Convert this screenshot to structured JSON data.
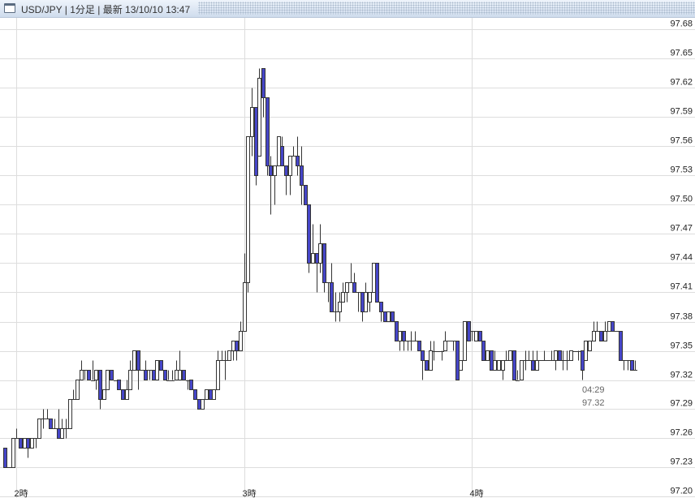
{
  "window": {
    "title": "USD/JPY | 1分足 | 最新 13/10/10 13:47",
    "icon": "window-icon"
  },
  "colors": {
    "up_fill": "#ffffff",
    "down_fill": "#4646c8",
    "candle_stroke": "#333333",
    "grid": "#dddddd"
  },
  "chart_data": {
    "type": "candlestick",
    "title": "",
    "interval": "1分足",
    "ylim": [
      97.2,
      97.68
    ],
    "yticks": [
      "97.68",
      "97.65",
      "97.62",
      "97.59",
      "97.56",
      "97.53",
      "97.50",
      "97.47",
      "97.44",
      "97.41",
      "97.38",
      "97.35",
      "97.32",
      "97.29",
      "97.26",
      "97.23",
      "97.20"
    ],
    "xticks": [
      {
        "label": "2時",
        "time": "02:00"
      },
      {
        "label": "3時",
        "time": "03:00"
      },
      {
        "label": "4時",
        "time": "04:00"
      }
    ],
    "grid": true,
    "axis_position": "right",
    "tooltip": {
      "time": "04:29",
      "price": "97.32"
    },
    "candle_fields": [
      "time",
      "open",
      "high",
      "low",
      "close"
    ],
    "candles": [
      [
        "01:57",
        97.25,
        97.25,
        97.23,
        97.23
      ],
      [
        "01:58",
        97.23,
        97.23,
        97.23,
        97.23
      ],
      [
        "01:59",
        97.23,
        97.26,
        97.23,
        97.26
      ],
      [
        "02:00",
        97.26,
        97.27,
        97.26,
        97.26
      ],
      [
        "02:01",
        97.26,
        97.26,
        97.25,
        97.25
      ],
      [
        "02:02",
        97.25,
        97.26,
        97.25,
        97.26
      ],
      [
        "02:03",
        97.26,
        97.26,
        97.24,
        97.25
      ],
      [
        "02:04",
        97.25,
        97.26,
        97.25,
        97.26
      ],
      [
        "02:05",
        97.26,
        97.26,
        97.25,
        97.26
      ],
      [
        "02:06",
        97.26,
        97.28,
        97.26,
        97.28
      ],
      [
        "02:07",
        97.28,
        97.29,
        97.27,
        97.28
      ],
      [
        "02:08",
        97.28,
        97.29,
        97.28,
        97.28
      ],
      [
        "02:09",
        97.28,
        97.28,
        97.27,
        97.27
      ],
      [
        "02:10",
        97.27,
        97.28,
        97.27,
        97.27
      ],
      [
        "02:11",
        97.27,
        97.29,
        97.26,
        97.26
      ],
      [
        "02:12",
        97.26,
        97.28,
        97.26,
        97.27
      ],
      [
        "02:13",
        97.27,
        97.28,
        97.26,
        97.27
      ],
      [
        "02:14",
        97.27,
        97.3,
        97.27,
        97.3
      ],
      [
        "02:15",
        97.3,
        97.31,
        97.3,
        97.3
      ],
      [
        "02:16",
        97.3,
        97.32,
        97.3,
        97.32
      ],
      [
        "02:17",
        97.32,
        97.34,
        97.32,
        97.33
      ],
      [
        "02:18",
        97.33,
        97.33,
        97.32,
        97.33
      ],
      [
        "02:19",
        97.33,
        97.33,
        97.32,
        97.32
      ],
      [
        "02:20",
        97.32,
        97.34,
        97.32,
        97.32
      ],
      [
        "02:21",
        97.32,
        97.33,
        97.31,
        97.33
      ],
      [
        "02:22",
        97.33,
        97.33,
        97.29,
        97.3
      ],
      [
        "02:23",
        97.3,
        97.31,
        97.3,
        97.31
      ],
      [
        "02:24",
        97.31,
        97.33,
        97.31,
        97.33
      ],
      [
        "02:25",
        97.33,
        97.33,
        97.32,
        97.32
      ],
      [
        "02:26",
        97.32,
        97.32,
        97.32,
        97.32
      ],
      [
        "02:27",
        97.32,
        97.32,
        97.31,
        97.31
      ],
      [
        "02:28",
        97.31,
        97.31,
        97.3,
        97.3
      ],
      [
        "02:29",
        97.3,
        97.32,
        97.3,
        97.31
      ],
      [
        "02:30",
        97.31,
        97.34,
        97.31,
        97.33
      ],
      [
        "02:31",
        97.33,
        97.35,
        97.33,
        97.35
      ],
      [
        "02:32",
        97.35,
        97.35,
        97.31,
        97.33
      ],
      [
        "02:33",
        97.33,
        97.33,
        97.33,
        97.33
      ],
      [
        "02:34",
        97.33,
        97.34,
        97.32,
        97.32
      ],
      [
        "02:35",
        97.33,
        97.33,
        97.32,
        97.33
      ],
      [
        "02:36",
        97.33,
        97.33,
        97.32,
        97.32
      ],
      [
        "02:37",
        97.32,
        97.34,
        97.32,
        97.34
      ],
      [
        "02:38",
        97.34,
        97.34,
        97.33,
        97.33
      ],
      [
        "02:39",
        97.33,
        97.33,
        97.32,
        97.32
      ],
      [
        "02:40",
        97.32,
        97.33,
        97.32,
        97.32
      ],
      [
        "02:41",
        97.32,
        97.33,
        97.32,
        97.32
      ],
      [
        "02:42",
        97.32,
        97.34,
        97.32,
        97.33
      ],
      [
        "02:43",
        97.32,
        97.35,
        97.32,
        97.33
      ],
      [
        "02:44",
        97.33,
        97.33,
        97.32,
        97.32
      ],
      [
        "02:45",
        97.32,
        97.32,
        97.31,
        97.32
      ],
      [
        "02:46",
        97.32,
        97.32,
        97.31,
        97.31
      ],
      [
        "02:47",
        97.31,
        97.31,
        97.3,
        97.3
      ],
      [
        "02:48",
        97.3,
        97.3,
        97.29,
        97.29
      ],
      [
        "02:49",
        97.29,
        97.3,
        97.29,
        97.3
      ],
      [
        "02:50",
        97.3,
        97.31,
        97.3,
        97.31
      ],
      [
        "02:51",
        97.31,
        97.31,
        97.3,
        97.3
      ],
      [
        "02:52",
        97.3,
        97.31,
        97.3,
        97.31
      ],
      [
        "02:53",
        97.31,
        97.35,
        97.31,
        97.34
      ],
      [
        "02:54",
        97.34,
        97.35,
        97.34,
        97.34
      ],
      [
        "02:55",
        97.34,
        97.35,
        97.32,
        97.34
      ],
      [
        "02:56",
        97.34,
        97.35,
        97.34,
        97.35
      ],
      [
        "02:57",
        97.35,
        97.36,
        97.34,
        97.36
      ],
      [
        "02:58",
        97.36,
        97.36,
        97.34,
        97.35
      ],
      [
        "02:59",
        97.35,
        97.38,
        97.35,
        97.37
      ],
      [
        "03:00",
        97.37,
        97.45,
        97.37,
        97.42
      ],
      [
        "03:01",
        97.42,
        97.57,
        97.41,
        97.57
      ],
      [
        "03:02",
        97.57,
        97.62,
        97.55,
        97.6
      ],
      [
        "03:03",
        97.6,
        97.6,
        97.52,
        97.53
      ],
      [
        "03:04",
        97.55,
        97.64,
        97.55,
        97.63
      ],
      [
        "03:05",
        97.64,
        97.64,
        97.59,
        97.61
      ],
      [
        "03:06",
        97.61,
        97.61,
        97.53,
        97.54
      ],
      [
        "03:07",
        97.54,
        97.55,
        97.49,
        97.53
      ],
      [
        "03:08",
        97.53,
        97.54,
        97.5,
        97.54
      ],
      [
        "03:09",
        97.54,
        97.57,
        97.54,
        97.57
      ],
      [
        "03:10",
        97.56,
        97.57,
        97.54,
        97.54
      ],
      [
        "03:11",
        97.54,
        97.54,
        97.51,
        97.53
      ],
      [
        "03:12",
        97.53,
        97.55,
        97.51,
        97.55
      ],
      [
        "03:13",
        97.55,
        97.56,
        97.55,
        97.55
      ],
      [
        "03:14",
        97.55,
        97.57,
        97.53,
        97.54
      ],
      [
        "03:15",
        97.54,
        97.56,
        97.5,
        97.52
      ],
      [
        "03:16",
        97.52,
        97.52,
        97.5,
        97.5
      ],
      [
        "03:17",
        97.5,
        97.5,
        97.43,
        97.44
      ],
      [
        "03:18",
        97.44,
        97.48,
        97.44,
        97.45
      ],
      [
        "03:19",
        97.45,
        97.45,
        97.41,
        97.44
      ],
      [
        "03:20",
        97.44,
        97.48,
        97.43,
        97.46
      ],
      [
        "03:21",
        97.46,
        97.46,
        97.41,
        97.42
      ],
      [
        "03:22",
        97.42,
        97.42,
        97.4,
        97.42
      ],
      [
        "03:23",
        97.42,
        97.44,
        97.39,
        97.39
      ],
      [
        "03:24",
        97.39,
        97.41,
        97.38,
        97.39
      ],
      [
        "03:25",
        97.39,
        97.41,
        97.38,
        97.4
      ],
      [
        "03:26",
        97.4,
        97.42,
        97.4,
        97.41
      ],
      [
        "03:27",
        97.41,
        97.42,
        97.4,
        97.42
      ],
      [
        "03:28",
        97.42,
        97.44,
        97.42,
        97.42
      ],
      [
        "03:29",
        97.42,
        97.43,
        97.41,
        97.41
      ],
      [
        "03:30",
        97.41,
        97.41,
        97.39,
        97.41
      ],
      [
        "03:31",
        97.41,
        97.41,
        97.38,
        97.39
      ],
      [
        "03:32",
        97.39,
        97.42,
        97.39,
        97.41
      ],
      [
        "03:33",
        97.4,
        97.41,
        97.39,
        97.41
      ],
      [
        "03:34",
        97.41,
        97.44,
        97.41,
        97.44
      ],
      [
        "03:35",
        97.44,
        97.44,
        97.4,
        97.4
      ],
      [
        "03:36",
        97.4,
        97.4,
        97.38,
        97.39
      ],
      [
        "03:37",
        97.39,
        97.39,
        97.38,
        97.38
      ],
      [
        "03:38",
        97.38,
        97.39,
        97.38,
        97.39
      ],
      [
        "03:39",
        97.39,
        97.39,
        97.38,
        97.38
      ],
      [
        "03:40",
        97.38,
        97.38,
        97.36,
        97.36
      ],
      [
        "03:41",
        97.36,
        97.37,
        97.35,
        97.37
      ],
      [
        "03:42",
        97.37,
        97.37,
        97.35,
        97.36
      ],
      [
        "03:43",
        97.36,
        97.36,
        97.35,
        97.36
      ],
      [
        "03:44",
        97.36,
        97.37,
        97.35,
        97.36
      ],
      [
        "03:45",
        97.36,
        97.37,
        97.36,
        97.36
      ],
      [
        "03:46",
        97.36,
        97.36,
        97.35,
        97.35
      ],
      [
        "03:47",
        97.35,
        97.35,
        97.32,
        97.34
      ],
      [
        "03:48",
        97.34,
        97.34,
        97.33,
        97.33
      ],
      [
        "03:49",
        97.33,
        97.36,
        97.33,
        97.35
      ],
      [
        "03:50",
        97.35,
        97.36,
        97.34,
        97.35
      ],
      [
        "03:51",
        97.35,
        97.35,
        97.35,
        97.35
      ],
      [
        "03:52",
        97.35,
        97.35,
        97.34,
        97.35
      ],
      [
        "03:53",
        97.35,
        97.37,
        97.35,
        97.36
      ],
      [
        "03:54",
        97.36,
        97.36,
        97.36,
        97.36
      ],
      [
        "03:55",
        97.36,
        97.36,
        97.35,
        97.36
      ],
      [
        "03:56",
        97.36,
        97.36,
        97.32,
        97.32
      ],
      [
        "03:57",
        97.33,
        97.34,
        97.33,
        97.34
      ],
      [
        "03:58",
        97.34,
        97.38,
        97.34,
        97.38
      ],
      [
        "03:59",
        97.38,
        97.38,
        97.36,
        97.36
      ],
      [
        "04:00",
        97.37,
        97.37,
        97.36,
        97.37
      ],
      [
        "04:01",
        97.36,
        97.37,
        97.36,
        97.37
      ],
      [
        "04:02",
        97.37,
        97.37,
        97.36,
        97.36
      ],
      [
        "04:03",
        97.36,
        97.36,
        97.34,
        97.34
      ],
      [
        "04:04",
        97.34,
        97.35,
        97.34,
        97.35
      ],
      [
        "04:05",
        97.35,
        97.35,
        97.33,
        97.33
      ],
      [
        "04:06",
        97.33,
        97.35,
        97.33,
        97.34
      ],
      [
        "04:07",
        97.33,
        97.34,
        97.33,
        97.34
      ],
      [
        "04:08",
        97.33,
        97.34,
        97.32,
        97.34
      ],
      [
        "04:09",
        97.34,
        97.35,
        97.34,
        97.34
      ],
      [
        "04:10",
        97.34,
        97.35,
        97.34,
        97.35
      ],
      [
        "04:11",
        97.35,
        97.35,
        97.32,
        97.32
      ],
      [
        "04:12",
        97.32,
        97.33,
        97.32,
        97.32
      ],
      [
        "04:13",
        97.32,
        97.34,
        97.32,
        97.34
      ],
      [
        "04:14",
        97.34,
        97.35,
        97.33,
        97.34
      ],
      [
        "04:15",
        97.34,
        97.35,
        97.34,
        97.34
      ],
      [
        "04:16",
        97.34,
        97.35,
        97.33,
        97.33
      ],
      [
        "04:17",
        97.33,
        97.35,
        97.33,
        97.34
      ],
      [
        "04:18",
        97.34,
        97.34,
        97.34,
        97.34
      ],
      [
        "04:19",
        97.34,
        97.35,
        97.34,
        97.34
      ],
      [
        "04:20",
        97.34,
        97.34,
        97.34,
        97.34
      ],
      [
        "04:21",
        97.34,
        97.35,
        97.34,
        97.34
      ],
      [
        "04:22",
        97.34,
        97.35,
        97.33,
        97.35
      ],
      [
        "04:23",
        97.35,
        97.35,
        97.34,
        97.34
      ],
      [
        "04:24",
        97.34,
        97.35,
        97.33,
        97.34
      ],
      [
        "04:25",
        97.34,
        97.35,
        97.33,
        97.34
      ],
      [
        "04:26",
        97.34,
        97.35,
        97.34,
        97.35
      ],
      [
        "04:27",
        97.35,
        97.35,
        97.35,
        97.35
      ],
      [
        "04:28",
        97.35,
        97.35,
        97.34,
        97.35
      ],
      [
        "04:29",
        97.35,
        97.35,
        97.32,
        97.33
      ],
      [
        "04:30",
        97.34,
        97.36,
        97.34,
        97.36
      ],
      [
        "04:31",
        97.35,
        97.36,
        97.35,
        97.36
      ],
      [
        "04:32",
        97.36,
        97.38,
        97.36,
        97.37
      ],
      [
        "04:33",
        97.37,
        97.38,
        97.37,
        97.37
      ],
      [
        "04:34",
        97.37,
        97.37,
        97.36,
        97.36
      ],
      [
        "04:35",
        97.36,
        97.38,
        97.36,
        97.37
      ],
      [
        "04:36",
        97.37,
        97.38,
        97.37,
        97.38
      ],
      [
        "04:37",
        97.38,
        97.38,
        97.37,
        97.37
      ],
      [
        "04:38",
        97.37,
        97.37,
        97.37,
        97.37
      ],
      [
        "04:39",
        97.37,
        97.37,
        97.34,
        97.34
      ],
      [
        "04:40",
        97.34,
        97.34,
        97.33,
        97.34
      ],
      [
        "04:41",
        97.34,
        97.34,
        97.33,
        97.34
      ],
      [
        "04:42",
        97.34,
        97.34,
        97.33,
        97.33
      ],
      [
        "04:43",
        97.33,
        97.34,
        97.33,
        97.33
      ]
    ]
  }
}
